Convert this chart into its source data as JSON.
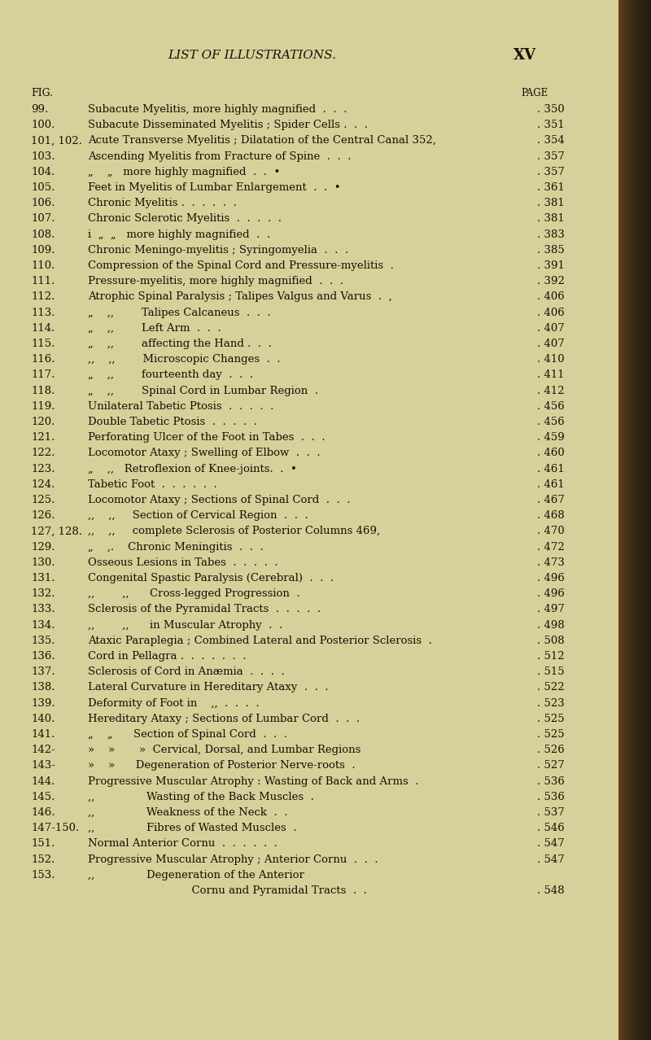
{
  "bg_color": "#d8d09a",
  "page_bg": "#d4cc8c",
  "spine_color": "#5a3a1a",
  "text_color": "#1a0e06",
  "title": "LIST OF ILLUSTRATIONS.",
  "page_label": "XV",
  "fig_label": "FIG.",
  "page_word": "PAGE",
  "entries": [
    {
      "num": "99.",
      "text": "Subacute Myelitis, more highly magnified  .  .  .",
      "page": "350",
      "cont": false
    },
    {
      "num": "100.",
      "text": "Subacute Disseminated Myelitis ; Spider Cells .  .  .",
      "page": "351",
      "cont": false
    },
    {
      "num": "101, 102.",
      "text": "Acute Transverse Myelitis ; Dilatation of the Central Canal 352,",
      "page": "354",
      "cont": false
    },
    {
      "num": "103.",
      "text": "Ascending Myelitis from Fracture of Spine  .  .  .",
      "page": "357",
      "cont": false
    },
    {
      "num": "104.",
      "text": "„    „   more highly magnified  .  .  •",
      "page": "357",
      "cont": true
    },
    {
      "num": "105.",
      "text": "Feet in Myelitis of Lumbar Enlargement  .  .  •",
      "page": "361",
      "cont": false
    },
    {
      "num": "106.",
      "text": "Chronic Myelitis .  .  .  .  .  .",
      "page": "381",
      "cont": false
    },
    {
      "num": "107.",
      "text": "Chronic Sclerotic Myelitis  .  .  .  .  .",
      "page": "381",
      "cont": false
    },
    {
      "num": "108.",
      "text": "i  „  „   more highly magnified  .  .",
      "page": "383",
      "cont": true
    },
    {
      "num": "109.",
      "text": "Chronic Meningo-myelitis ; Syringomyelia  .  .  .",
      "page": "385",
      "cont": false
    },
    {
      "num": "110.",
      "text": "Compression of the Spinal Cord and Pressure-myelitis  .",
      "page": "391",
      "cont": false
    },
    {
      "num": "111.",
      "text": "Pressure-myelitis, more highly magnified  .  .  .",
      "page": "392",
      "cont": false
    },
    {
      "num": "112.",
      "text": "Atrophic Spinal Paralysis ; Talipes Valgus and Varus  .  ,",
      "page": "406",
      "cont": false
    },
    {
      "num": "113.",
      "text": "„    ,,        Talipes Calcaneus  .  .  .",
      "page": "406",
      "cont": true
    },
    {
      "num": "114.",
      "text": "„    ,,        Left Arm  .  .  .",
      "page": "407",
      "cont": true
    },
    {
      "num": "115.",
      "text": "„    ,,        affecting the Hand .  .  .",
      "page": "407",
      "cont": true
    },
    {
      "num": "116.",
      "text": ",,    ,,        Microscopic Changes  .  .",
      "page": "410",
      "cont": true
    },
    {
      "num": "117.",
      "text": "„    ,,        fourteenth day  .  .  .",
      "page": "411",
      "cont": true
    },
    {
      "num": "118.",
      "text": "„    ,,        Spinal Cord in Lumbar Region  .",
      "page": "412",
      "cont": true
    },
    {
      "num": "119.",
      "text": "Unilateral Tabetic Ptosis  .  .  .  .  .",
      "page": "456",
      "cont": false
    },
    {
      "num": "120.",
      "text": "Double Tabetic Ptosis  .  .  .  .  .",
      "page": "456",
      "cont": false
    },
    {
      "num": "121.",
      "text": "Perforating Ulcer of the Foot in Tabes  .  .  .",
      "page": "459",
      "cont": false
    },
    {
      "num": "122.",
      "text": "Locomotor Ataxy ; Swelling of Elbow  .  .  .",
      "page": "460",
      "cont": false
    },
    {
      "num": "123.",
      "text": "„    ,,   Retroflexion of Knee-joints.  .  •",
      "page": "461",
      "cont": true
    },
    {
      "num": "124.",
      "text": "Tabetic Foot  .  .  .  .  .  .",
      "page": "461",
      "cont": false
    },
    {
      "num": "125.",
      "text": "Locomotor Ataxy ; Sections of Spinal Cord  .  .  .",
      "page": "467",
      "cont": false
    },
    {
      "num": "126.",
      "text": ",,    ,,     Section of Cervical Region  .  .  .",
      "page": "468",
      "cont": true
    },
    {
      "num": "127, 128.",
      "text": ",,    ,,     complete Sclerosis of Posterior Columns 469,",
      "page": "470",
      "cont": true
    },
    {
      "num": "129.",
      "text": "„    ,.    Chronic Meningitis  .  .  .",
      "page": "472",
      "cont": true
    },
    {
      "num": "130.",
      "text": "Osseous Lesions in Tabes  .  .  .  .  .",
      "page": "473",
      "cont": false
    },
    {
      "num": "131.",
      "text": "Congenital Spastic Paralysis (Cerebral)  .  .  .",
      "page": "496",
      "cont": false
    },
    {
      "num": "132.",
      "text": ",,        ,,      Cross-legged Progression  .",
      "page": "496",
      "cont": true
    },
    {
      "num": "133.",
      "text": "Sclerosis of the Pyramidal Tracts  .  .  .  .  .",
      "page": "497",
      "cont": false
    },
    {
      "num": "134.",
      "text": ",,        ,,      in Muscular Atrophy  .  .",
      "page": "498",
      "cont": true
    },
    {
      "num": "135.",
      "text": "Ataxic Paraplegia ; Combined Lateral and Posterior Sclerosis  .",
      "page": "508",
      "cont": false
    },
    {
      "num": "136.",
      "text": "Cord in Pellagra .  .  .  .  .  .  .",
      "page": "512",
      "cont": false
    },
    {
      "num": "137.",
      "text": "Sclerosis of Cord in Anæmia  .  .  .  .",
      "page": "515",
      "cont": false
    },
    {
      "num": "138.",
      "text": "Lateral Curvature in Hereditary Ataxy  .  .  .",
      "page": "522",
      "cont": false
    },
    {
      "num": "139.",
      "text": "Deformity of Foot in    ,,  .  .  .  .",
      "page": "523",
      "cont": false
    },
    {
      "num": "140.",
      "text": "Hereditary Ataxy ; Sections of Lumbar Cord  .  .  .",
      "page": "525",
      "cont": false
    },
    {
      "num": "141.",
      "text": "„    „      Section of Spinal Cord  .  .  .",
      "page": "525",
      "cont": true
    },
    {
      "num": "142-",
      "text": "»    »       »  Cervical, Dorsal, and Lumbar Regions",
      "page": "526",
      "cont": true
    },
    {
      "num": "143-",
      "text": "»    »      Degeneration of Posterior Nerve-roots  .",
      "page": "527",
      "cont": true
    },
    {
      "num": "144.",
      "text": "Progressive Muscular Atrophy : Wasting of Back and Arms  .",
      "page": "536",
      "cont": false
    },
    {
      "num": "145.",
      "text": ",,               Wasting of the Back Muscles  .",
      "page": "536",
      "cont": true
    },
    {
      "num": "146.",
      "text": ",,               Weakness of the Neck  .  .",
      "page": "537",
      "cont": true
    },
    {
      "num": "147-150.",
      "text": ",,               Fibres of Wasted Muscles  .",
      "page": "546",
      "cont": true
    },
    {
      "num": "151.",
      "text": "Normal Anterior Cornu  .  .  .  .  .  .",
      "page": "547",
      "cont": false
    },
    {
      "num": "152.",
      "text": "Progressive Muscular Atrophy ; Anterior Cornu  .  .  .",
      "page": "547",
      "cont": false
    },
    {
      "num": "153.",
      "text": ",,               Degeneration of the Anterior",
      "page": null,
      "cont": true
    },
    {
      "num": "",
      "text": "                              Cornu and Pyramidal Tracts  .  .",
      "page": "548",
      "cont": true
    }
  ]
}
